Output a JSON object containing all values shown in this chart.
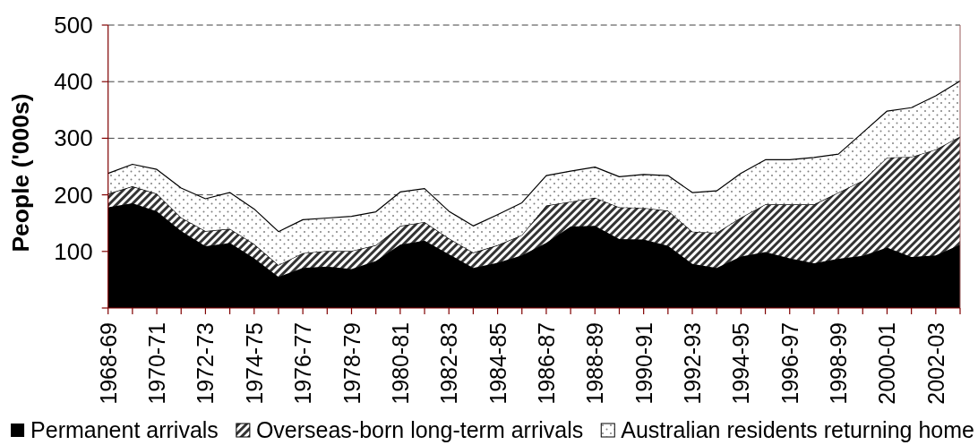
{
  "chart_data": {
    "type": "area",
    "stacked": true,
    "ylabel": "People ('000s)",
    "categories": [
      "1968-69",
      null,
      "1970-71",
      null,
      "1972-73",
      null,
      "1974-75",
      null,
      "1976-77",
      null,
      "1978-79",
      null,
      "1980-81",
      null,
      "1982-83",
      null,
      "1984-85",
      null,
      "1986-87",
      null,
      "1988-89",
      null,
      "1990-91",
      null,
      "1992-93",
      null,
      "1994-95",
      null,
      "1996-97",
      null,
      "1998-99",
      null,
      "2000-01",
      null,
      "2002-03",
      null
    ],
    "series": [
      {
        "name": "Permanent arrivals",
        "color": "#000000",
        "values": [
          178,
          185,
          171,
          136,
          109,
          115,
          88,
          55,
          71,
          73,
          69,
          83,
          112,
          119,
          95,
          71,
          80,
          93,
          115,
          144,
          145,
          122,
          121,
          110,
          78,
          71,
          91,
          99,
          88,
          79,
          87,
          92,
          107,
          90,
          93,
          112
        ]
      },
      {
        "name": "Overseas-born long-term arrivals",
        "color": "#333333",
        "values": [
          24,
          30,
          31,
          24,
          27,
          25,
          25,
          21,
          26,
          28,
          32,
          28,
          33,
          33,
          28,
          27,
          31,
          36,
          66,
          44,
          50,
          56,
          56,
          62,
          57,
          62,
          69,
          84,
          95,
          104,
          117,
          133,
          159,
          177,
          187,
          191
        ]
      },
      {
        "name": "Australian residents returning home",
        "color": "#808080",
        "values": [
          36,
          39,
          43,
          52,
          57,
          64,
          62,
          59,
          59,
          58,
          61,
          59,
          60,
          59,
          48,
          47,
          54,
          57,
          53,
          54,
          54,
          54,
          59,
          62,
          69,
          74,
          78,
          79,
          79,
          83,
          68,
          85,
          82,
          87,
          95,
          98
        ]
      }
    ],
    "ylim": [
      0,
      500
    ],
    "yticks": [
      {
        "value": 0,
        "label": null
      },
      100,
      200,
      300,
      400,
      500
    ],
    "grid": "y",
    "legend": "bottom"
  }
}
